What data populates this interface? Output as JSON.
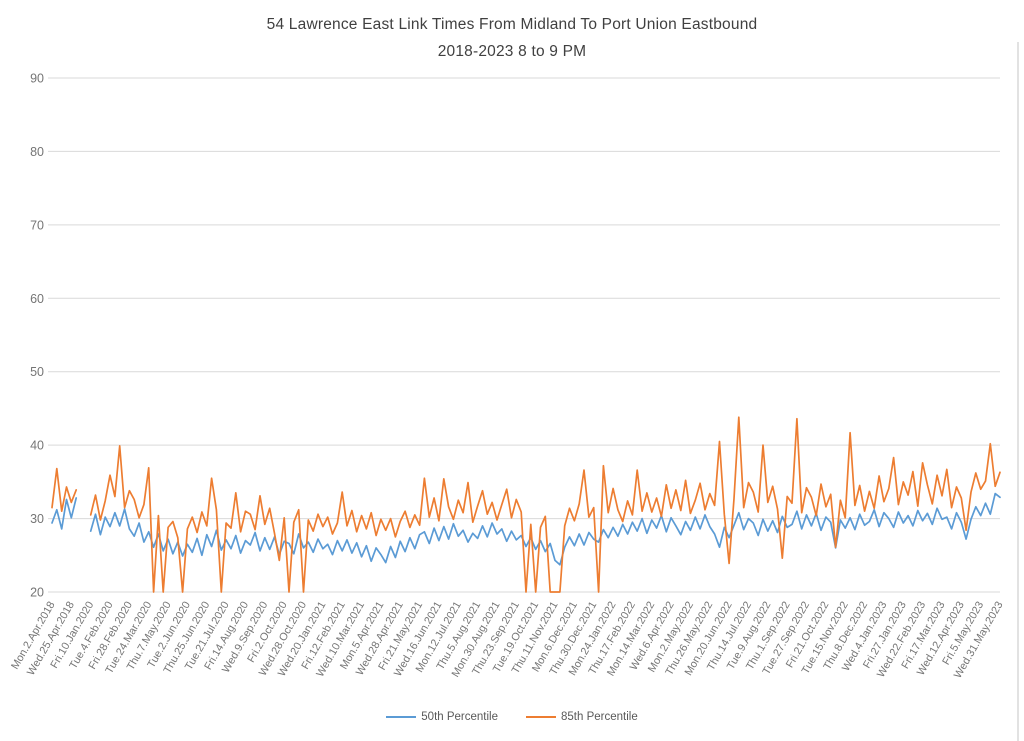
{
  "title": {
    "line1": "54 Lawrence East Link Times From Midland To Port Union Eastbound",
    "line2": "2018-2023 8 to 9 PM"
  },
  "legend": {
    "series1_label": "50th Percentile",
    "series2_label": "85th Percentile"
  },
  "colors": {
    "series1": "#5B9BD5",
    "series2": "#ED7D31",
    "gridline": "#D9D9D9",
    "axis_text": "#757575",
    "title_text": "#404040",
    "frame_border": "#D9D9D9"
  },
  "chart_data": {
    "type": "line",
    "title": "54 Lawrence East Link Times From Midland To Port Union Eastbound 2018-2023 8 to 9 PM",
    "xlabel": "",
    "ylabel": "",
    "ylim": [
      20,
      90
    ],
    "y_ticks": [
      20,
      30,
      40,
      50,
      60,
      70,
      80,
      90
    ],
    "grid": true,
    "legend_position": "bottom",
    "x_step_ticks": 0.25,
    "gap_note": "null values = gap in data between Apr 2018 and Jan 2020",
    "x_tick_labels": [
      "Mon.2.Apr.2018",
      "Wed.25.Apr.2018",
      "Fri.10.Jan.2020",
      "Tue.4.Feb.2020",
      "Fri.28.Feb.2020",
      "Tue.24.Mar.2020",
      "Thu.7.May.2020",
      "Tue.2.Jun.2020",
      "Thu.25.Jun.2020",
      "Tue.21.Jul.2020",
      "Fri.14.Aug.2020",
      "Wed.9.Sep.2020",
      "Fri.2.Oct.2020",
      "Wed.28.Oct.2020",
      "Wed.20.Jan.2021",
      "Fri.12.Feb.2021",
      "Wed.10.Mar.2021",
      "Mon.5.Apr.2021",
      "Wed.28.Apr.2021",
      "Fri.21.May.2021",
      "Wed.16.Jun.2021",
      "Mon.12.Jul.2021",
      "Thu.5.Aug.2021",
      "Mon.30.Aug.2021",
      "Thu.23.Sep.2021",
      "Tue.19.Oct.2021",
      "Thu.11.Nov.2021",
      "Mon.6.Dec.2021",
      "Thu.30.Dec.2021",
      "Mon.24.Jan.2022",
      "Thu.17.Feb.2022",
      "Mon.14.Mar.2022",
      "Wed.6.Apr.2022",
      "Mon.2.May.2022",
      "Thu.26.May.2022",
      "Mon.20.Jun.2022",
      "Thu.14.Jul.2022",
      "Tue.9.Aug.2022",
      "Thu.1.Sep.2022",
      "Tue.27.Sep.2022",
      "Fri.21.Oct.2022",
      "Tue.15.Nov.2022",
      "Thu.8.Dec.2022",
      "Wed.4.Jan.2023",
      "Fri.27.Jan.2023",
      "Wed.22.Feb.2023",
      "Fri.17.Mar.2023",
      "Wed.12.Apr.2023",
      "Fri.5.May.2023",
      "Wed.31.May.2023"
    ],
    "series": [
      {
        "name": "50th Percentile",
        "color": "#5B9BD5",
        "values": [
          29.4,
          31.2,
          28.6,
          32.6,
          30.1,
          32.8,
          null,
          null,
          28.3,
          30.6,
          27.8,
          30.2,
          28.9,
          30.8,
          29.0,
          31.3,
          28.6,
          27.6,
          29.4,
          26.8,
          28.2,
          26.1,
          27.9,
          25.6,
          27.2,
          25.2,
          26.8,
          24.9,
          26.5,
          25.4,
          27.3,
          25.0,
          27.8,
          26.2,
          28.4,
          25.7,
          27.1,
          25.9,
          27.7,
          25.3,
          27.0,
          26.4,
          28.1,
          25.6,
          27.4,
          25.8,
          27.5,
          25.1,
          26.9,
          26.6,
          25.2,
          27.9,
          26.0,
          26.8,
          25.4,
          27.2,
          25.9,
          26.5,
          25.1,
          27.0,
          25.6,
          27.1,
          25.3,
          26.7,
          24.8,
          26.3,
          24.2,
          26.0,
          25.1,
          24.0,
          26.2,
          24.7,
          26.9,
          25.5,
          27.4,
          25.9,
          27.8,
          28.2,
          26.6,
          28.7,
          27.0,
          28.9,
          27.2,
          29.3,
          27.6,
          28.4,
          26.8,
          28.0,
          27.3,
          29.0,
          27.5,
          29.4,
          27.9,
          28.6,
          26.9,
          28.3,
          27.1,
          27.7,
          26.2,
          27.4,
          25.8,
          27.0,
          25.5,
          26.6,
          24.3,
          23.7,
          26.1,
          27.5,
          26.3,
          27.9,
          26.4,
          28.1,
          27.2,
          26.8,
          28.5,
          27.4,
          28.8,
          27.6,
          29.2,
          27.9,
          29.5,
          28.3,
          30.0,
          28.0,
          29.8,
          28.7,
          30.4,
          28.2,
          30.1,
          29.0,
          27.8,
          29.6,
          28.4,
          30.2,
          28.6,
          30.5,
          28.9,
          27.9,
          26.1,
          28.8,
          27.4,
          29.1,
          30.8,
          28.5,
          30.0,
          29.4,
          27.7,
          29.9,
          28.3,
          29.7,
          28.1,
          30.3,
          28.8,
          29.2,
          31.0,
          28.6,
          30.5,
          29.0,
          30.7,
          28.4,
          30.2,
          29.5,
          26.0,
          29.8,
          28.7,
          30.1,
          28.5,
          30.6,
          29.1,
          29.6,
          31.2,
          28.9,
          30.8,
          30.0,
          28.8,
          30.9,
          29.4,
          30.4,
          29.0,
          31.1,
          29.7,
          30.7,
          29.2,
          31.4,
          29.9,
          30.2,
          28.6,
          30.8,
          29.5,
          27.2,
          29.9,
          31.6,
          30.4,
          32.1,
          30.6,
          33.4,
          32.9
        ]
      },
      {
        "name": "85th Percentile",
        "color": "#ED7D31",
        "values": [
          31.5,
          36.8,
          31.0,
          34.3,
          32.2,
          33.9,
          null,
          null,
          30.5,
          33.2,
          29.8,
          32.4,
          35.9,
          33.0,
          39.9,
          31.5,
          33.8,
          32.6,
          30.1,
          31.9,
          36.9,
          20.0,
          30.4,
          20.0,
          28.8,
          29.6,
          27.4,
          20.0,
          28.6,
          30.2,
          28.1,
          30.9,
          29.0,
          35.5,
          31.2,
          20.0,
          29.4,
          28.7,
          33.5,
          28.2,
          31.0,
          30.6,
          28.5,
          33.1,
          29.2,
          31.4,
          28.0,
          24.3,
          30.1,
          20.0,
          29.5,
          31.2,
          20.0,
          29.8,
          28.3,
          30.6,
          28.9,
          30.2,
          27.9,
          29.4,
          33.6,
          29.0,
          31.1,
          28.2,
          30.4,
          28.6,
          30.8,
          27.7,
          29.9,
          28.4,
          30.0,
          27.5,
          29.6,
          31.0,
          28.8,
          30.5,
          29.1,
          35.5,
          30.2,
          32.8,
          29.7,
          35.4,
          31.6,
          29.9,
          32.5,
          30.8,
          34.9,
          29.5,
          31.7,
          33.8,
          30.6,
          32.2,
          29.8,
          31.9,
          34.0,
          30.1,
          32.6,
          30.9,
          20.0,
          29.2,
          20.0,
          28.8,
          30.3,
          20.0,
          20.0,
          20.0,
          29.0,
          31.4,
          29.7,
          32.0,
          36.6,
          30.2,
          31.5,
          20.0,
          37.2,
          30.8,
          34.1,
          31.2,
          29.6,
          32.4,
          30.5,
          36.6,
          31.0,
          33.5,
          30.9,
          32.8,
          30.3,
          34.6,
          31.4,
          33.9,
          31.1,
          35.2,
          30.7,
          32.5,
          34.8,
          31.2,
          33.4,
          31.8,
          40.5,
          30.6,
          23.9,
          32.7,
          43.8,
          31.5,
          34.9,
          33.6,
          30.9,
          40.0,
          32.2,
          34.4,
          31.3,
          24.6,
          33.0,
          32.1,
          43.6,
          30.8,
          34.2,
          32.9,
          30.4,
          34.7,
          31.6,
          33.3,
          26.1,
          32.5,
          30.1,
          41.7,
          31.8,
          34.5,
          31.0,
          33.7,
          31.4,
          35.8,
          32.3,
          34.1,
          38.3,
          31.9,
          35.0,
          33.2,
          36.4,
          31.7,
          37.6,
          34.6,
          32.0,
          35.9,
          33.1,
          36.7,
          31.5,
          34.3,
          32.8,
          28.4,
          33.6,
          36.2,
          34.0,
          35.1,
          40.2,
          34.4,
          36.3
        ]
      }
    ]
  }
}
